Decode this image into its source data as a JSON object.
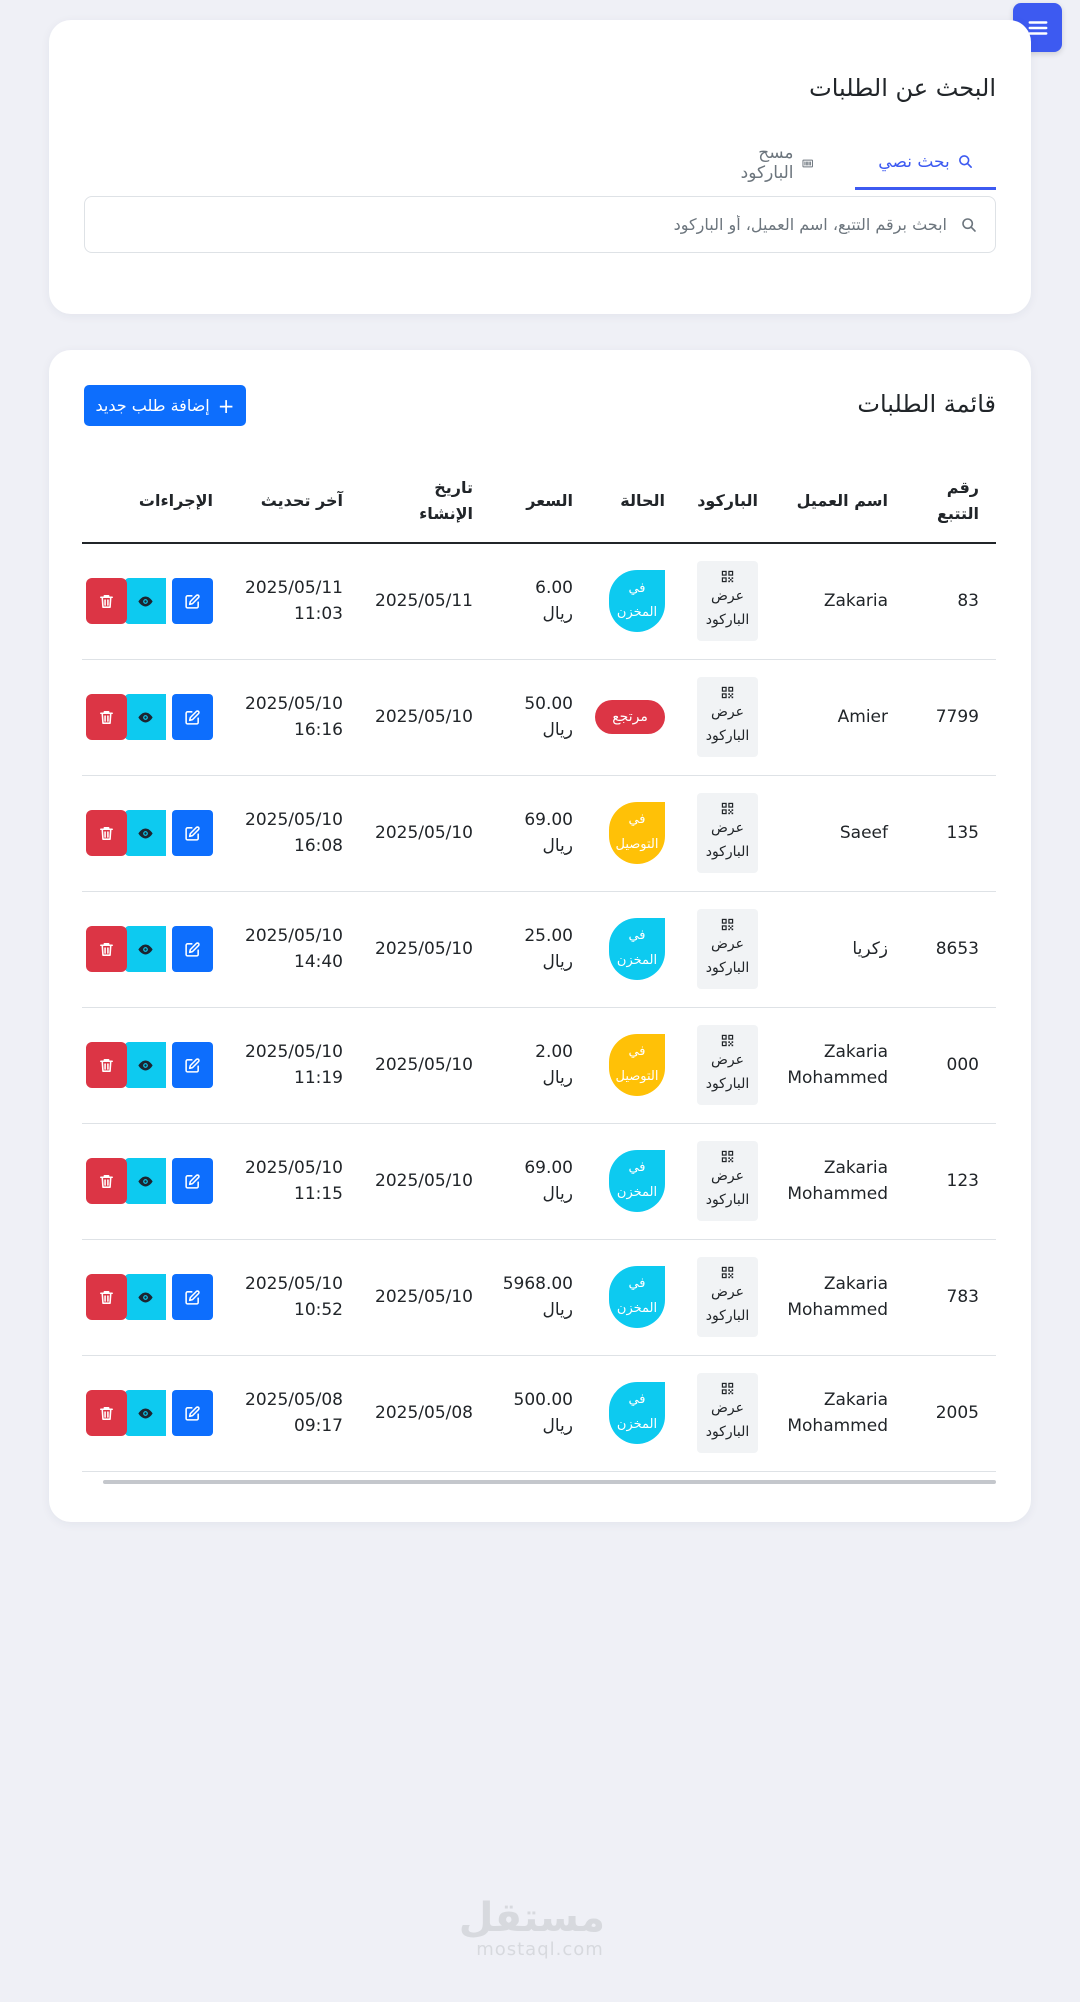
{
  "search": {
    "title": "البحث عن الطلبات",
    "tab_text": "بحث نصي",
    "tab_barcode": "مسح الباركود",
    "placeholder": "ابحث برقم التتبع، اسم العميل، أو الباركود"
  },
  "list": {
    "title": "قائمة الطلبات",
    "add_label": "إضافة طلب جديد",
    "columns": [
      "رقم التتبع",
      "اسم العميل",
      "الباركود",
      "الحالة",
      "السعر",
      "تاريخ الإنشاء",
      "آخر تحديث",
      "الإجراءات"
    ],
    "barcode_label": "عرض الباركود",
    "rows": [
      {
        "id": "83",
        "name": "Zakaria",
        "status": "في المخزن",
        "price": "6.00 ريال",
        "created": "2025/05/11",
        "updated": "2025/05/11 11:03"
      },
      {
        "id": "7799",
        "name": "Amier",
        "status": "مرتجع",
        "price": "50.00 ريال",
        "created": "2025/05/10",
        "updated": "2025/05/10 16:16"
      },
      {
        "id": "135",
        "name": "Saeef",
        "status": "في التوصيل",
        "price": "69.00 ريال",
        "created": "2025/05/10",
        "updated": "2025/05/10 16:08"
      },
      {
        "id": "8653",
        "name": "زكريا",
        "status": "في المخزن",
        "price": "25.00 ريال",
        "created": "2025/05/10",
        "updated": "2025/05/10 14:40"
      },
      {
        "id": "000",
        "name": "Zakaria Mohammed",
        "status": "في التوصيل",
        "price": "2.00 ريال",
        "created": "2025/05/10",
        "updated": "2025/05/10 11:19"
      },
      {
        "id": "123",
        "name": "Zakaria Mohammed",
        "status": "في المخزن",
        "price": "69.00 ريال",
        "created": "2025/05/10",
        "updated": "2025/05/10 11:15"
      },
      {
        "id": "783",
        "name": "Zakaria Mohammed",
        "status": "في المخزن",
        "price": "5968.00 ريال",
        "created": "2025/05/10",
        "updated": "2025/05/10 10:52"
      },
      {
        "id": "2005",
        "name": "Zakaria Mohammed",
        "status": "في المخزن",
        "price": "500.00 ريال",
        "created": "2025/05/08",
        "updated": "2025/05/08 09:17"
      }
    ]
  },
  "status_colors": {
    "في المخزن": "#0dcaf0",
    "مرتجع": "#dc3545",
    "في التوصيل": "#ffc107"
  },
  "icons": {
    "menu": "hamburger-icon",
    "search": "search-icon",
    "barcode": "barcode-icon",
    "qr": "qr-code-icon",
    "edit": "edit-icon",
    "view": "eye-icon",
    "delete": "trash-icon"
  },
  "watermark": {
    "ar": "مستقل",
    "en": "mostaql.com"
  }
}
